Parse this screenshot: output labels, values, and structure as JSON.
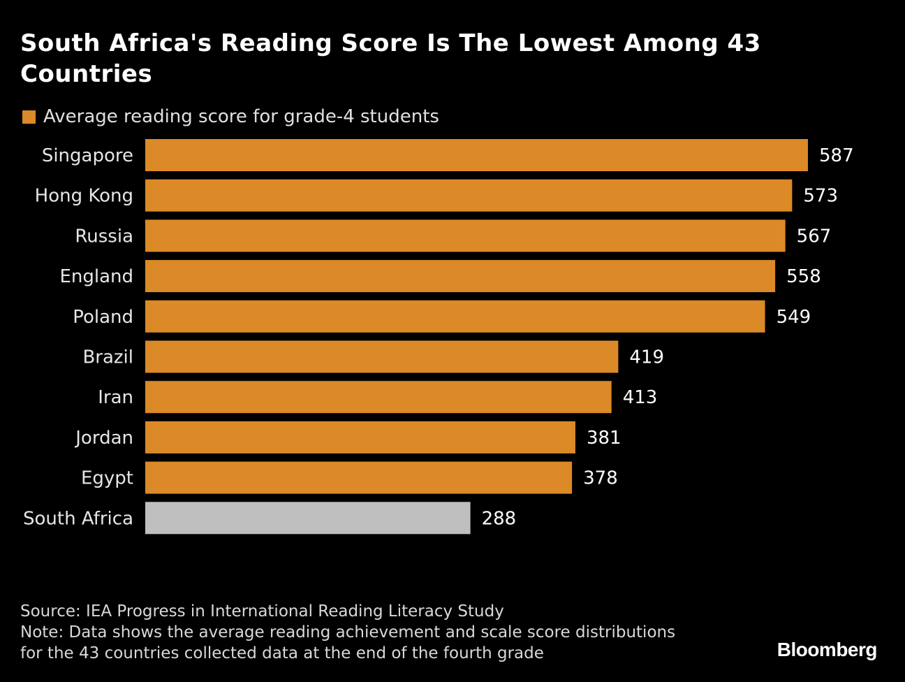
{
  "chart_data": {
    "type": "bar",
    "orientation": "horizontal",
    "title": "South Africa's Reading Score Is The Lowest Among 43 Countries",
    "legend": [
      {
        "name": "Average reading score for grade-4 students",
        "color": "#DB8A27"
      }
    ],
    "legend_placement": "top-left",
    "categories": [
      "Singapore",
      "Hong Kong",
      "Russia",
      "England",
      "Poland",
      "Brazil",
      "Iran",
      "Jordan",
      "Egypt",
      "South Africa"
    ],
    "values": [
      587,
      573,
      567,
      558,
      549,
      419,
      413,
      381,
      378,
      288
    ],
    "bar_colors": [
      "#DB8A27",
      "#DB8A27",
      "#DB8A27",
      "#DB8A27",
      "#DB8A27",
      "#DB8A27",
      "#DB8A27",
      "#DB8A27",
      "#DB8A27",
      "#BFBFBF"
    ],
    "xlim": [
      0,
      587
    ],
    "grid": false,
    "data_labels": true
  },
  "footer": {
    "source": "Source: IEA Progress in International Reading Literacy Study",
    "note_line1": "Note: Data shows the average reading achievement and scale score distributions",
    "note_line2": "for the 43 countries collected data at the end of the fourth grade",
    "brand": "Bloomberg"
  }
}
